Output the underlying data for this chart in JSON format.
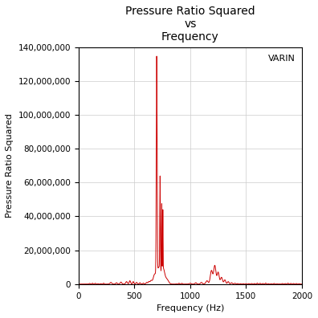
{
  "title": "Pressure Ratio Squared\nvs\nFrequency",
  "xlabel": "Frequency (Hz)",
  "ylabel": "Pressure Ratio Squared",
  "legend_label": "VARIN",
  "xlim": [
    0,
    2000
  ],
  "ylim": [
    0,
    140000000
  ],
  "yticks": [
    0,
    20000000,
    40000000,
    60000000,
    80000000,
    100000000,
    120000000,
    140000000
  ],
  "xticks": [
    0,
    500,
    1000,
    1500,
    2000
  ],
  "line_color": "#cc0000",
  "background_color": "#ffffff",
  "grid_color": "#cccccc",
  "title_fontsize": 10,
  "axis_label_fontsize": 8,
  "tick_fontsize": 7.5,
  "legend_fontsize": 8
}
